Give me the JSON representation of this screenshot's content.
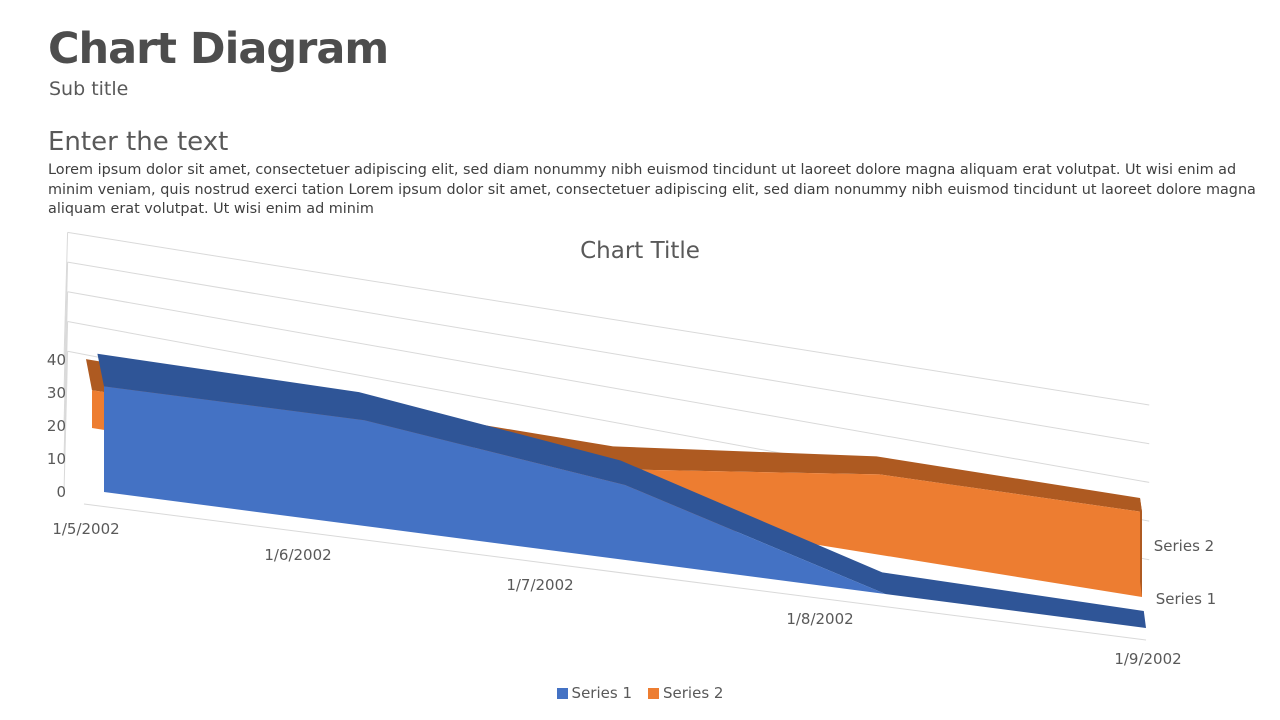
{
  "header": {
    "title": "Chart Diagram",
    "subtitle": "Sub title"
  },
  "content": {
    "heading": "Enter the text",
    "body": "Lorem ipsum dolor sit amet, consectetuer adipiscing elit, sed diam nonummy nibh euismod tincidunt ut laoreet dolore magna aliquam erat volutpat. Ut wisi enim ad minim veniam, quis nostrud exerci tation Lorem ipsum dolor sit amet, consectetuer adipiscing elit, sed diam nonummy nibh euismod tincidunt ut laoreet dolore magna aliquam erat volutpat. Ut wisi enim ad minim"
  },
  "chart_data": {
    "type": "area",
    "view": "3d",
    "title": "Chart Title",
    "categories": [
      "1/5/2002",
      "1/6/2002",
      "1/7/2002",
      "1/8/2002",
      "1/9/2002"
    ],
    "series": [
      {
        "name": "Series 1",
        "values": [
          32,
          30,
          20,
          0,
          0
        ],
        "color": "#4472c4",
        "top_color": "#2f5597"
      },
      {
        "name": "Series 2",
        "values": [
          12,
          12,
          12,
          21,
          21
        ],
        "color": "#ed7d31",
        "top_color": "#ae5a21"
      }
    ],
    "y_ticks": [
      0,
      10,
      20,
      30,
      40
    ],
    "ylim": [
      0,
      40
    ],
    "xlabel": "",
    "ylabel": "",
    "grid": true,
    "legend": "bottom"
  }
}
